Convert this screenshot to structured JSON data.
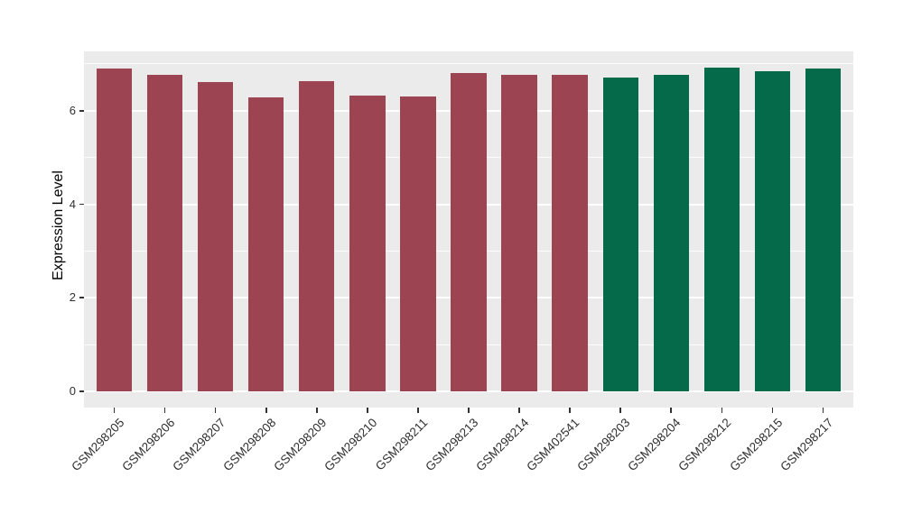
{
  "chart_data": {
    "type": "bar",
    "title": "",
    "xlabel": "",
    "ylabel": "Expression Level",
    "categories": [
      "GSM298205",
      "GSM298206",
      "GSM298207",
      "GSM298208",
      "GSM298209",
      "GSM298210",
      "GSM298211",
      "GSM298213",
      "GSM298214",
      "GSM402541",
      "GSM298203",
      "GSM298204",
      "GSM298212",
      "GSM298215",
      "GSM298217"
    ],
    "values": [
      6.91,
      6.76,
      6.62,
      6.29,
      6.64,
      6.33,
      6.3,
      6.8,
      6.76,
      6.76,
      6.72,
      6.76,
      6.93,
      6.84,
      6.91
    ],
    "bar_groups": [
      0,
      0,
      0,
      0,
      0,
      0,
      0,
      0,
      0,
      0,
      1,
      1,
      1,
      1,
      1
    ],
    "group_colors": [
      "#9C4451",
      "#046A49"
    ],
    "ylim": [
      -0.35,
      7.27
    ],
    "yticks": [
      0,
      2,
      4,
      6
    ],
    "ytick_labels": [
      "0",
      "2",
      "4",
      "6"
    ],
    "minor_yticks": [
      1,
      3,
      5,
      7
    ],
    "x_label_angle": -45,
    "bar_width_fraction": 0.7,
    "grid": true,
    "legend_position": "none",
    "panel_bg": "#EBEBEB",
    "grid_color": "#FFFFFF",
    "tick_mark_color": "#333333",
    "tick_label_color": "#303030",
    "axis_title_color": "#000000",
    "figure_bg": "#FFFFFF"
  }
}
